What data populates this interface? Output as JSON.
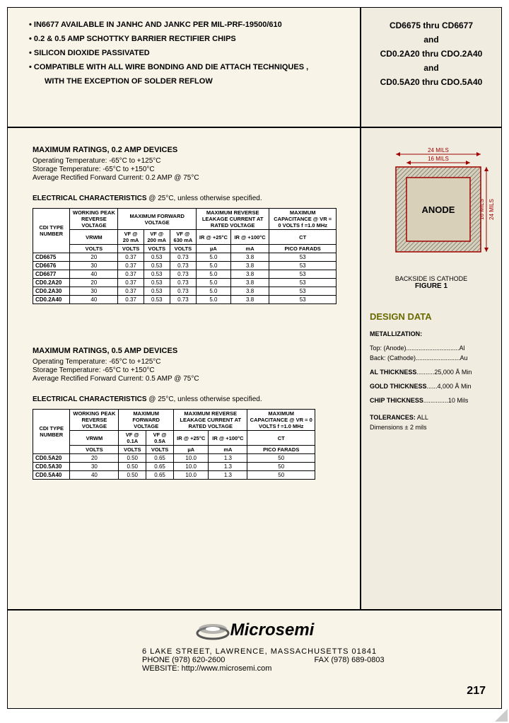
{
  "header": {
    "bullets": [
      "IN6677 AVAILABLE IN JANHC AND JANKC PER MIL-PRF-19500/610",
      "0.2 & 0.5 AMP SCHOTTKY BARRIER RECTIFIER CHIPS",
      "SILICON DIOXIDE PASSIVATED",
      "COMPATIBLE WITH ALL WIRE BONDING AND DIE ATTACH TECHNIQUES ,"
    ],
    "bullet_cont": "WITH THE EXCEPTION OF SOLDER REFLOW",
    "right_lines": [
      "CD6675 thru CD6677",
      "and",
      "CD0.2A20 thru CDO.2A40",
      "and",
      "CD0.5A20 thru CDO.5A40"
    ]
  },
  "ratings02": {
    "title": "MAXIMUM RATINGS, 0.2 AMP DEVICES",
    "op_temp": "Operating Temperature: -65°C to +125°C",
    "st_temp": "Storage Temperature: -65°C to +150°C",
    "arf": "Average Rectified Forward Current: 0.2 AMP @ 75°C"
  },
  "ec1": {
    "title_b": "ELECTRICAL CHARACTERISTICS",
    "title_n": " @ 25°C, unless otherwise specified.",
    "headers": {
      "c1": "CDI TYPE NUMBER",
      "c2": "WORKING PEAK REVERSE VOLTAGE",
      "c3": "MAXIMUM FORWARD VOLTAGE",
      "c4": "MAXIMUM REVERSE LEAKAGE CURRENT AT RATED VOLTAGE",
      "c5": "MAXIMUM CAPACITANCE @ VR = 0 VOLTS f =1.0 MHz",
      "sub": [
        "VRWM",
        "VF @ 20 mA",
        "VF @ 200 mA",
        "VF @ 630 mA",
        "IR @ +25°C",
        "IR @ +100°C",
        "CT"
      ],
      "units": [
        "VOLTS",
        "VOLTS",
        "VOLTS",
        "VOLTS",
        "µA",
        "mA",
        "PICO FARADS"
      ]
    },
    "rows": [
      [
        "CD6675",
        "20",
        "0.37",
        "0.53",
        "0.73",
        "5.0",
        "3.8",
        "53"
      ],
      [
        "CD6676",
        "30",
        "0.37",
        "0.53",
        "0.73",
        "5.0",
        "3.8",
        "53"
      ],
      [
        "CD6677",
        "40",
        "0.37",
        "0.53",
        "0.73",
        "5.0",
        "3.8",
        "53"
      ],
      [
        "CD0.2A20",
        "20",
        "0.37",
        "0.53",
        "0.73",
        "5.0",
        "3.8",
        "53"
      ],
      [
        "CD0.2A30",
        "30",
        "0.37",
        "0.53",
        "0.73",
        "5.0",
        "3.8",
        "53"
      ],
      [
        "CD0.2A40",
        "40",
        "0.37",
        "0.53",
        "0.73",
        "5.0",
        "3.8",
        "53"
      ]
    ]
  },
  "ratings05": {
    "title": "MAXIMUM RATINGS, 0.5 AMP DEVICES",
    "op_temp": "Operating Temperature: -65°C to +125°C",
    "st_temp": "Storage Temperature: -65°C to +150°C",
    "arf": "Average Rectified Forward Current: 0.5 AMP @ 75°C"
  },
  "ec2": {
    "title_b": "ELECTRICAL CHARACTERISTICS",
    "title_n": " @ 25°C, unless otherwise specified.",
    "headers": {
      "c1": "CDI TYPE NUMBER",
      "c2": "WORKING PEAK REVERSE VOLTAGE",
      "c3": "MAXIMUM FORWARD VOLTAGE",
      "c4": "MAXIMUM REVERSE LEAKAGE CURRENT AT RATED VOLTAGE",
      "c5": "MAXIMUM CAPACITANCE @ VR = 0 VOLTS f =1.0 MHz",
      "sub": [
        "VRWM",
        "VF @ 0.1A",
        "VF @ 0.5A",
        "IR @ +25°C",
        "IR @ +100°C",
        "CT"
      ],
      "units": [
        "VOLTS",
        "VOLTS",
        "VOLTS",
        "µA",
        "mA",
        "PICO FARADS"
      ]
    },
    "rows": [
      [
        "CD0.5A20",
        "20",
        "0.50",
        "0.65",
        "10.0",
        "1.3",
        "50"
      ],
      [
        "CD0.5A30",
        "30",
        "0.50",
        "0.65",
        "10.0",
        "1.3",
        "50"
      ],
      [
        "CD0.5A40",
        "40",
        "0.50",
        "0.65",
        "10.0",
        "1.3",
        "50"
      ]
    ]
  },
  "figure": {
    "dim_outer": "24 MILS",
    "dim_inner": "16 MILS",
    "anode": "ANODE",
    "caption1": "BACKSIDE IS CATHODE",
    "caption2": "FIGURE 1",
    "fill": "#d8d0b8",
    "stroke": "#a00000"
  },
  "design": {
    "title": "DESIGN DATA",
    "met": "METALLIZATION:",
    "top": "Top:   (Anode)..............................Al",
    "back": "Back: (Cathode).........................Au",
    "al_b": "AL THICKNESS",
    "al_v": "..........25,000 Å Min",
    "gold_b": "GOLD THICKNESS",
    "gold_v": "......4,000 Å Min",
    "chip_b": "CHIP THICKNESS",
    "chip_v": "..............10 Mils",
    "tol_b": "TOLERANCES:",
    "tol_v": " ALL",
    "tol2": "Dimensions ± 2 mils"
  },
  "footer": {
    "company": "Microsemi",
    "addr": "6 LAKE STREET, LAWRENCE, MASSACHUSETTS 01841",
    "phone": "PHONE (978) 620-2600",
    "fax": "FAX (978) 689-0803",
    "web": "WEBSITE: http://www.microsemi.com",
    "pagenum": "217"
  }
}
